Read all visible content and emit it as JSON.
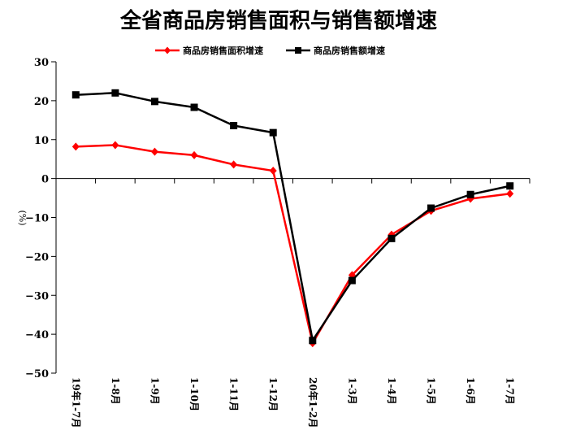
{
  "chart_data": {
    "type": "line",
    "title": "全省商品房销售面积与销售额增速",
    "ylabel": "(%)",
    "xlabel": "",
    "ylim": [
      -50,
      30
    ],
    "yticks": [
      30,
      20,
      10,
      0,
      -10,
      -20,
      -30,
      -40,
      -50
    ],
    "ytick_labels": [
      "30",
      "20",
      "10",
      "0",
      "−10",
      "−20",
      "−30",
      "−40",
      "−50"
    ],
    "categories": [
      "19年1-7月",
      "1-8月",
      "1-9月",
      "1-10月",
      "1-11月",
      "1-12月",
      "20年1-2月",
      "1-3月",
      "1-4月",
      "1-5月",
      "1-6月",
      "1-7月"
    ],
    "legend_position": "top-center",
    "grid": false,
    "series": [
      {
        "name": "商品房销售面积增速",
        "color": "#ff0000",
        "marker": "diamond",
        "values": [
          8.2,
          8.6,
          6.9,
          6.0,
          3.6,
          2.0,
          -42.3,
          -24.8,
          -14.4,
          -8.3,
          -5.2,
          -3.9
        ]
      },
      {
        "name": "商品房销售额增速",
        "color": "#000000",
        "marker": "square",
        "values": [
          21.5,
          22.0,
          19.8,
          18.3,
          13.6,
          11.8,
          -41.6,
          -26.2,
          -15.4,
          -7.6,
          -4.1,
          -1.9
        ]
      }
    ]
  }
}
